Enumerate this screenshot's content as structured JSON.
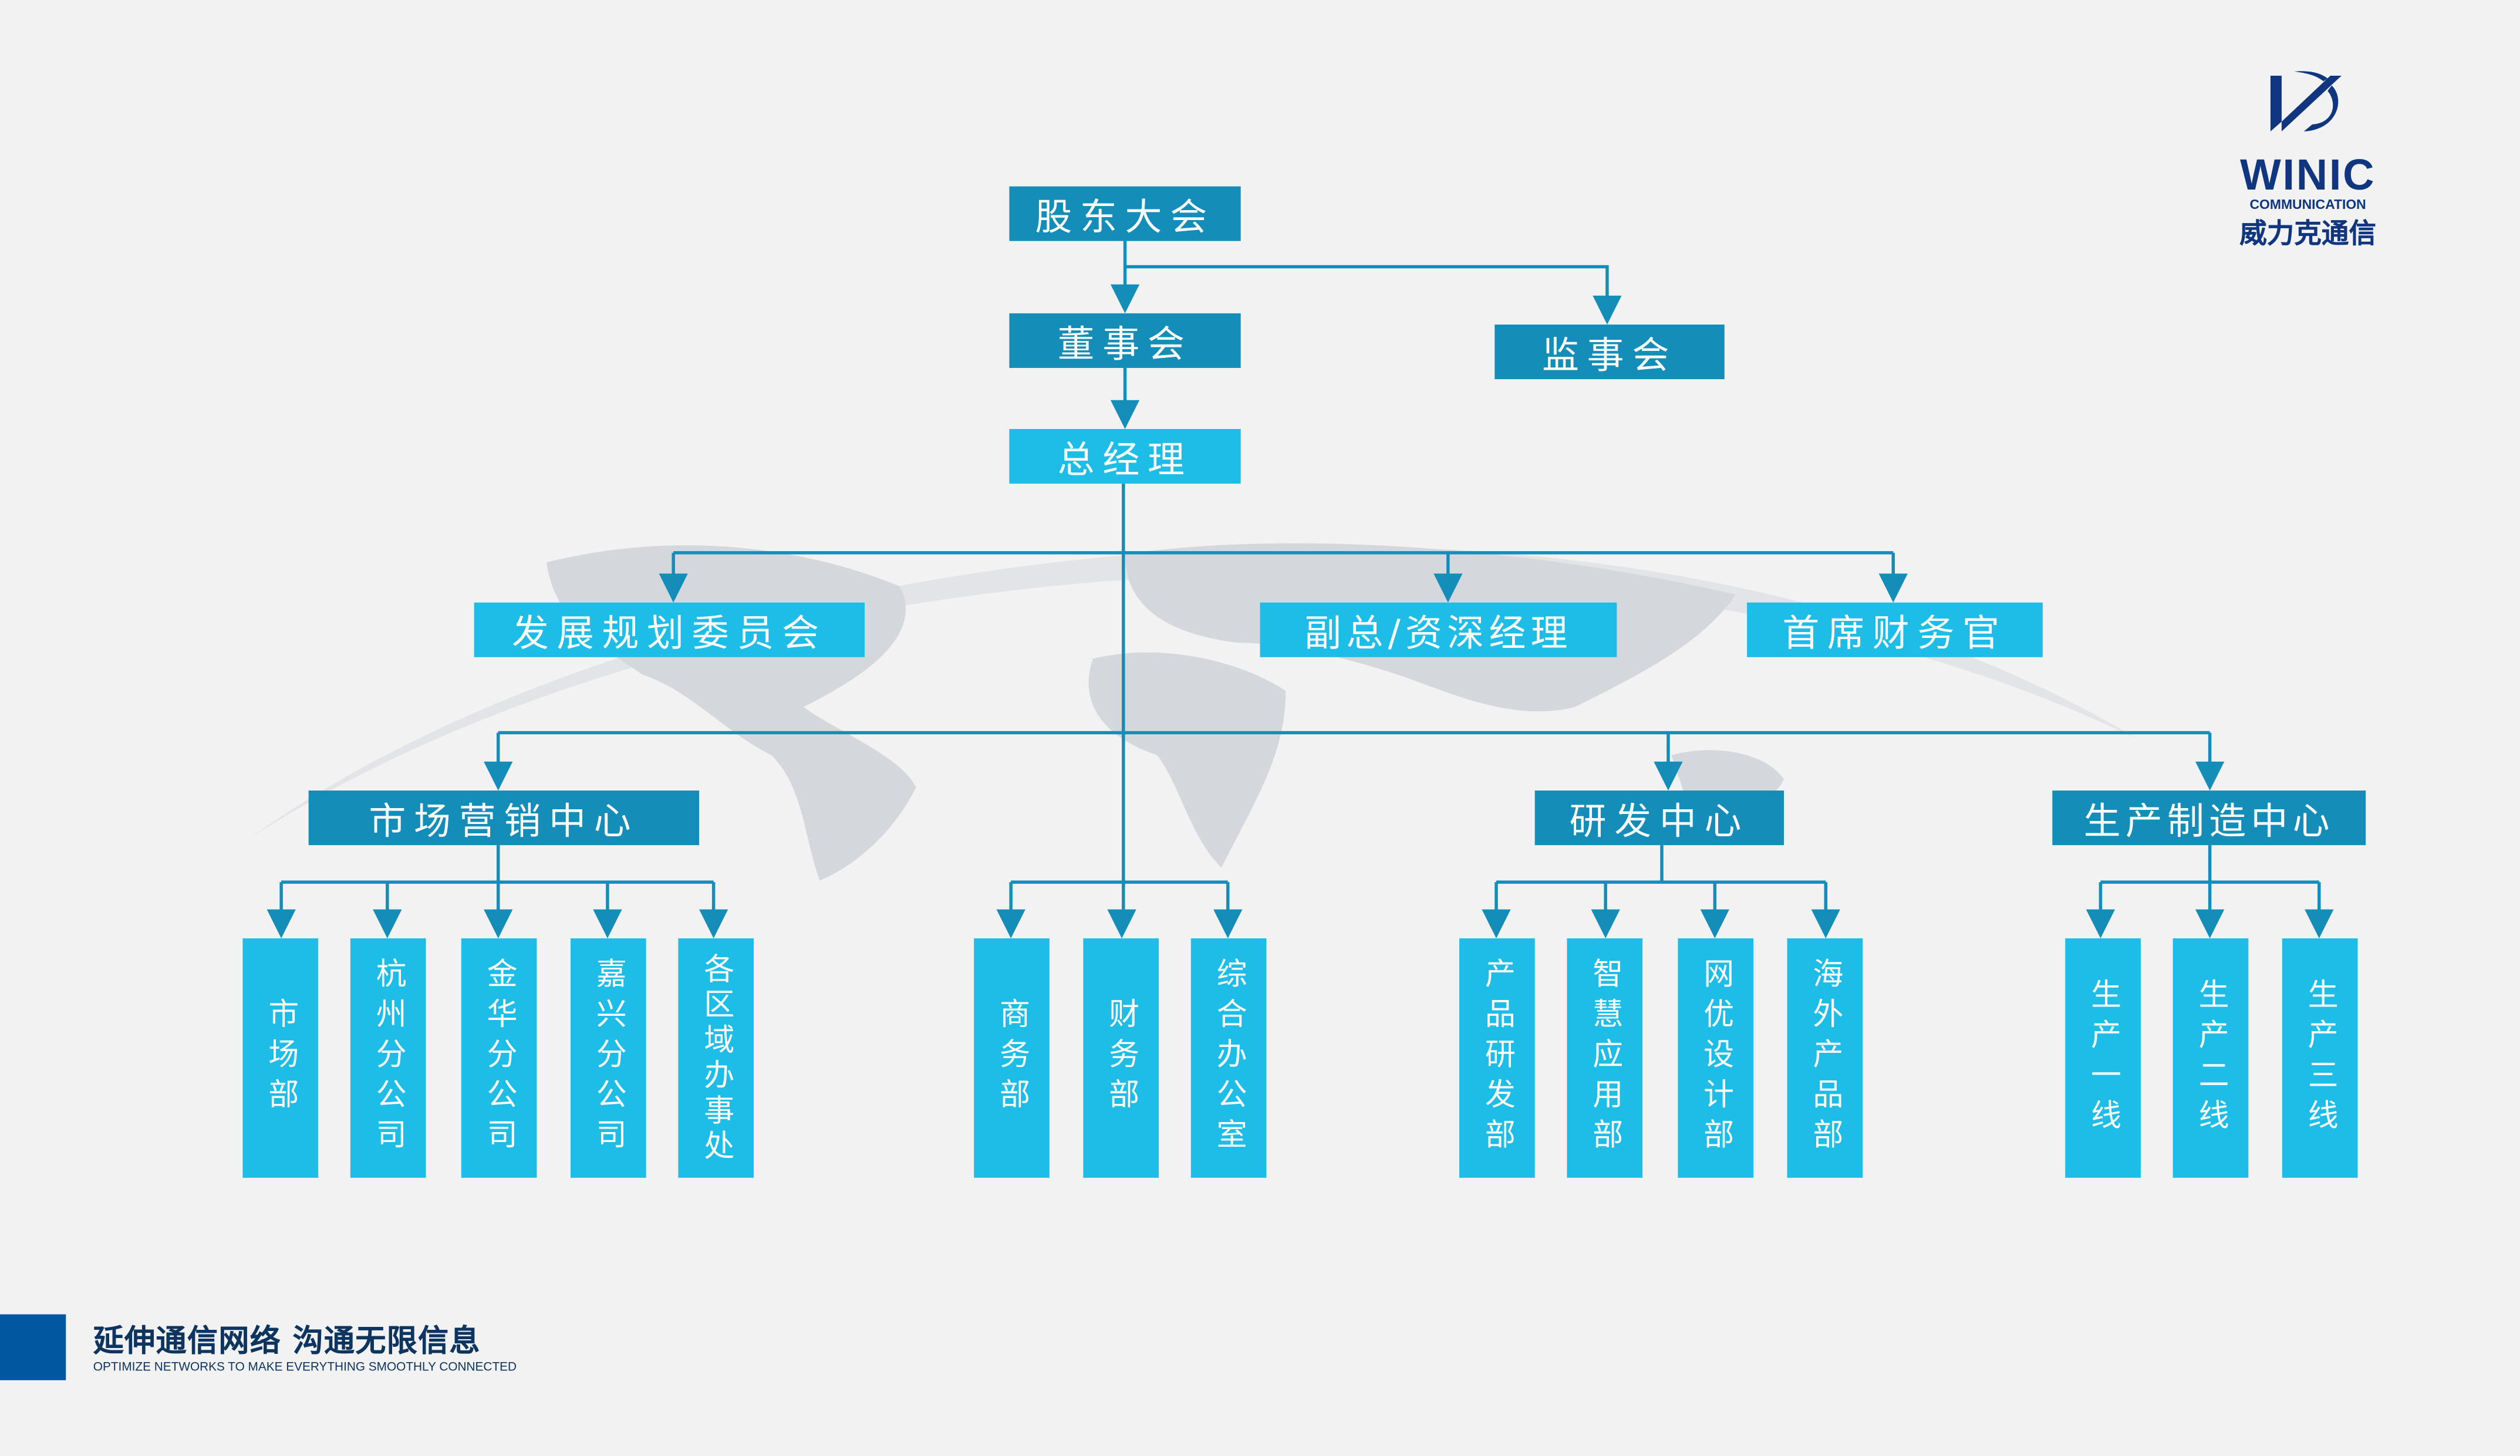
{
  "colors": {
    "dark_box": "#148eb8",
    "light_box": "#1dbde8",
    "connector": "#148eb8",
    "brand": "#10367f",
    "background": "#f2f2f2"
  },
  "logo": {
    "mark": "WINIC-emblem",
    "name": "WINIC",
    "sub": "COMMUNICATION",
    "cn": "威力克通信"
  },
  "nodes": {
    "shareholders": "股东大会",
    "board": "董事会",
    "supervisors": "监事会",
    "gm": "总经理",
    "planning": "发展规划委员会",
    "vp": "副总/资深经理",
    "cfo": "首席财务官",
    "marketing_center": "市场营销中心",
    "rd_center": "研发中心",
    "production_center": "生产制造中心"
  },
  "departments": {
    "marketing": [
      "市场部",
      "杭州分公司",
      "金华分公司",
      "嘉兴分公司",
      "各区域办事处"
    ],
    "direct": [
      "商务部",
      "财务部",
      "综合办公室"
    ],
    "rd": [
      "产品研发部",
      "智慧应用部",
      "网优设计部",
      "海外产品部"
    ],
    "production": [
      "生产一线",
      "生产二线",
      "生产三线"
    ]
  },
  "footer": {
    "slogan_cn": "延伸通信网络 沟通无限信息",
    "slogan_en": "OPTIMIZE NETWORKS TO MAKE EVERYTHING SMOOTHLY CONNECTED"
  }
}
